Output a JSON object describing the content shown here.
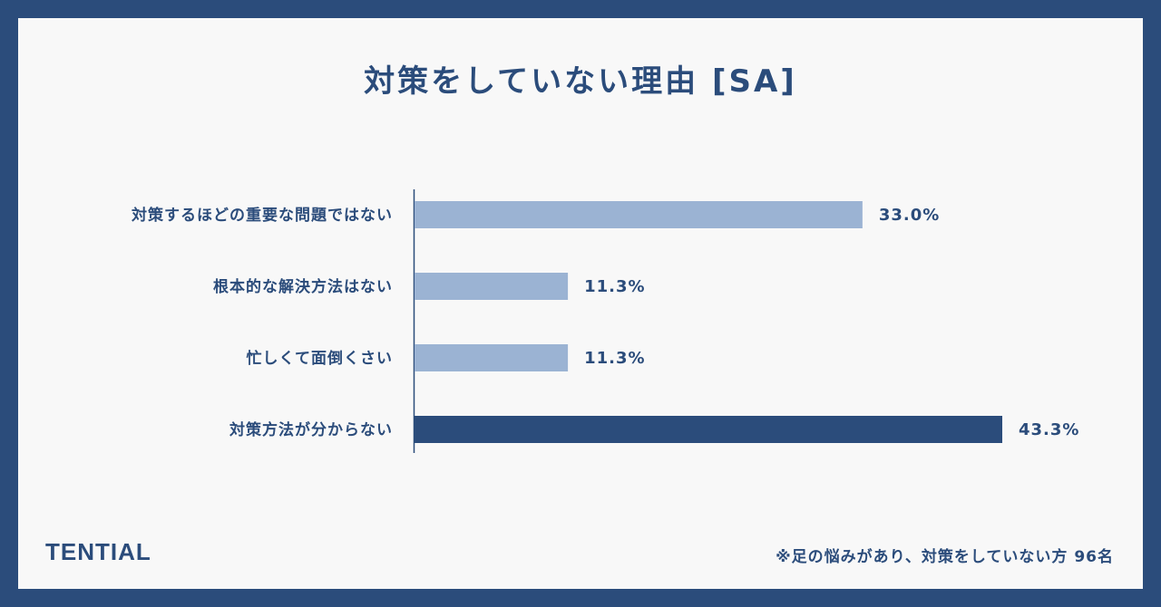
{
  "chart_data": {
    "type": "bar",
    "orientation": "horizontal",
    "title": "対策をしていない理由 [SA]",
    "categories": [
      "対策するほどの重要な問題ではない",
      "根本的な解決方法はない",
      "忙しくて面倒くさい",
      "対策方法が分からない"
    ],
    "values": [
      33.0,
      11.3,
      11.3,
      43.3
    ],
    "value_labels": [
      "33.0%",
      "11.3%",
      "11.3%",
      "43.3%"
    ],
    "highlight_index": 3,
    "xlim": [
      0,
      50
    ],
    "grid": false,
    "legend": "none"
  },
  "colors": {
    "background": "#2b4c7b",
    "panel": "#f8f8f8",
    "bar": "#9bb3d3",
    "bar_highlight": "#2b4c7b",
    "text": "#2b4c7b"
  },
  "brand": "TENTIAL",
  "footnote": "※足の悩みがあり、対策をしていない方 96名"
}
